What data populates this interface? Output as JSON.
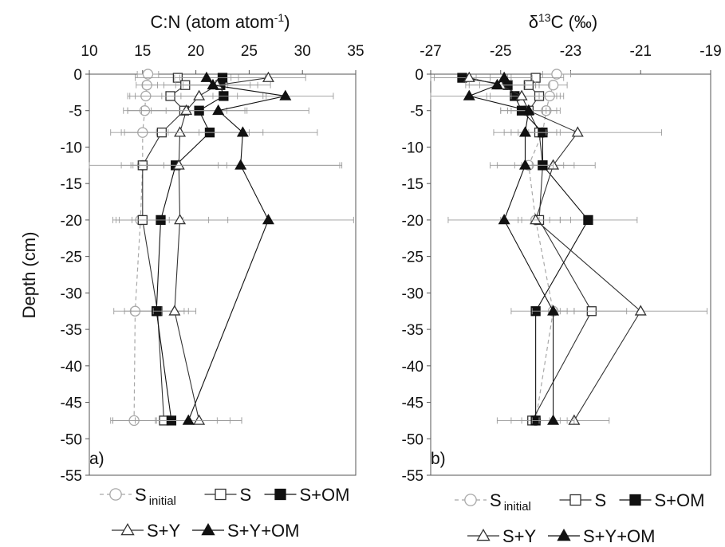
{
  "figure": {
    "ylabel": "Depth (cm)"
  },
  "chart_data": [
    {
      "type": "scatter",
      "panel_label": "a)",
      "title": "C:N (atom atom-1)",
      "title_main": "C:N (atom atom",
      "title_sup": "-1",
      "title_close": ")",
      "xaxis_position": "top",
      "xlim": [
        10,
        35
      ],
      "xticks": [
        "10",
        "15",
        "20",
        "25",
        "30",
        "35"
      ],
      "ylim": [
        -55,
        0
      ],
      "yticks": [
        "0",
        "-5",
        "-10",
        "-15",
        "-20",
        "-25",
        "-30",
        "-35",
        "-40",
        "-45",
        "-50",
        "-55"
      ],
      "ylabel": "Depth (cm)",
      "grid": false,
      "series": [
        {
          "name": "S initial",
          "name_main": "S",
          "name_sub": "initial",
          "marker": "circle",
          "marker_fill": "open",
          "line_style": "dashed",
          "color": "#a8a8a8",
          "y": [
            0,
            -1.5,
            -3,
            -5,
            -8,
            -12.5,
            -20,
            -32.5,
            -47.5
          ],
          "x": [
            15.5,
            15.4,
            15.3,
            15.2,
            15.0,
            15.0,
            14.8,
            14.3,
            14.2
          ],
          "xerr": [
            1.0,
            1.0,
            1.5,
            2.0,
            2.0,
            2.0,
            2.0,
            2.0,
            2.0
          ]
        },
        {
          "name": "S",
          "name_main": "S",
          "marker": "square",
          "marker_fill": "open",
          "line_style": "solid",
          "color": "#333333",
          "y": [
            -0.5,
            -1.5,
            -3,
            -5,
            -8,
            -12.5,
            -20,
            -32.5,
            -47.5
          ],
          "x": [
            18.3,
            19.0,
            17.6,
            18.9,
            16.8,
            15.0,
            15.0,
            16.4,
            17.0
          ],
          "xerr": [
            4.0,
            4.0,
            4.0,
            4.0,
            3.5,
            18.5,
            2.5,
            2.5,
            5.0
          ]
        },
        {
          "name": "S+OM",
          "name_main": "S+OM",
          "marker": "square",
          "marker_fill": "filled",
          "line_style": "solid",
          "color": "#111111",
          "y": [
            -0.5,
            -1.5,
            -3,
            -5,
            -8,
            -12.5,
            -20,
            -32.5,
            -47.5
          ],
          "x": [
            22.5,
            22.3,
            22.6,
            20.3,
            21.3,
            18.1,
            16.7,
            16.3,
            17.7
          ],
          "xerr": [
            4.0,
            3.5,
            4.0,
            4.5,
            5.0,
            4.0,
            4.5,
            3.0,
            5.5
          ]
        },
        {
          "name": "S+Y",
          "name_main": "S+Y",
          "marker": "triangle",
          "marker_fill": "open",
          "line_style": "solid",
          "color": "#333333",
          "y": [
            -0.5,
            -1.5,
            -3,
            -5,
            -8,
            -12.5,
            -20,
            -32.5,
            -47.5
          ],
          "x": [
            26.8,
            22.0,
            20.3,
            19.1,
            18.5,
            18.4,
            18.5,
            18.0,
            20.3
          ],
          "xerr": [
            3.5,
            5.0,
            6.0,
            5.5,
            6.5,
            4.5,
            4.5,
            2.0,
            4.0
          ]
        },
        {
          "name": "S+Y+OM",
          "name_main": "S+Y+OM",
          "marker": "triangle",
          "marker_fill": "filled",
          "line_style": "solid",
          "color": "#111111",
          "y": [
            -0.5,
            -1.5,
            -3,
            -5,
            -8,
            -12.5,
            -20,
            -47.5
          ],
          "x": [
            21.0,
            21.6,
            28.4,
            22.1,
            24.4,
            24.2,
            26.8,
            19.3
          ],
          "xerr": [
            3.0,
            3.5,
            4.5,
            8.5,
            7.0,
            9.5,
            8.0,
            5.0
          ]
        }
      ],
      "legend": {
        "placement": "bottom",
        "rows": [
          [
            "S initial",
            "S",
            "S+OM"
          ],
          [
            "S+Y",
            "S+Y+OM"
          ]
        ]
      }
    },
    {
      "type": "scatter",
      "panel_label": "b)",
      "title": "δ13C (‰)",
      "title_main": "δ",
      "title_sup": "13",
      "title_close": "C (‰)",
      "xaxis_position": "top",
      "xlim": [
        -27,
        -19
      ],
      "xticks": [
        "-27",
        "-25",
        "-23",
        "-21",
        "-19"
      ],
      "ylim": [
        -55,
        0
      ],
      "yticks": [
        "0",
        "-5",
        "-10",
        "-15",
        "-20",
        "-25",
        "-30",
        "-35",
        "-40",
        "-45",
        "-50",
        "-55"
      ],
      "grid": false,
      "series": [
        {
          "name": "S initial",
          "name_main": "S",
          "name_sub": "initial",
          "marker": "circle",
          "marker_fill": "open",
          "line_style": "dashed",
          "color": "#a8a8a8",
          "y": [
            0,
            -1.5,
            -3,
            -5,
            -8,
            -12.5,
            -20,
            -32.5,
            -47.5
          ],
          "x": [
            -23.4,
            -23.5,
            -23.6,
            -23.7,
            -23.8,
            -24.2,
            -24.0,
            -23.5,
            -24.0
          ],
          "xerr": [
            0.4,
            0.4,
            0.4,
            0.4,
            0.4,
            0.4,
            0.4,
            0.4,
            0.4
          ]
        },
        {
          "name": "S",
          "name_main": "S",
          "marker": "square",
          "marker_fill": "open",
          "line_style": "solid",
          "color": "#333333",
          "y": [
            -0.5,
            -1.5,
            -3,
            -5,
            -8,
            -12.5,
            -20,
            -32.5,
            -47.5
          ],
          "x": [
            -24.0,
            -24.2,
            -23.9,
            -24.2,
            -23.9,
            -23.8,
            -23.9,
            -22.4,
            -24.1
          ],
          "xerr": [
            0.8,
            0.6,
            0.6,
            0.5,
            0.6,
            0.6,
            0.6,
            1.0,
            1.0
          ]
        },
        {
          "name": "S+OM",
          "name_main": "S+OM",
          "marker": "square",
          "marker_fill": "filled",
          "line_style": "solid",
          "color": "#111111",
          "y": [
            -0.5,
            -1.5,
            -3,
            -5,
            -8,
            -12.5,
            -20,
            -32.5,
            -47.5
          ],
          "x": [
            -26.1,
            -24.8,
            -24.6,
            -24.4,
            -23.8,
            -23.8,
            -22.5,
            -24.0,
            -24.0
          ],
          "xerr": [
            0.8,
            0.8,
            0.7,
            0.6,
            0.9,
            1.5,
            1.4,
            0.7,
            0.7
          ]
        },
        {
          "name": "S+Y",
          "name_main": "S+Y",
          "marker": "triangle",
          "marker_fill": "open",
          "line_style": "solid",
          "color": "#333333",
          "y": [
            -0.5,
            -1.5,
            -3,
            -5,
            -8,
            -12.5,
            -20,
            -32.5,
            -47.5
          ],
          "x": [
            -25.9,
            -25.0,
            -24.4,
            -24.2,
            -22.8,
            -23.5,
            -24.0,
            -21.0,
            -22.9
          ],
          "xerr": [
            1.2,
            1.0,
            1.0,
            0.8,
            2.4,
            0.6,
            1.0,
            1.9,
            1.0
          ]
        },
        {
          "name": "S+Y+OM",
          "name_main": "S+Y+OM",
          "marker": "triangle",
          "marker_fill": "filled",
          "line_style": "solid",
          "color": "#111111",
          "y": [
            -0.5,
            -1.5,
            -3,
            -5,
            -8,
            -12.5,
            -20,
            -32.5,
            -47.5
          ],
          "x": [
            -24.9,
            -25.1,
            -25.9,
            -24.2,
            -24.3,
            -24.3,
            -24.9,
            -23.5,
            -23.5
          ],
          "xerr": [
            0.8,
            0.8,
            1.2,
            0.6,
            0.6,
            0.8,
            1.6,
            0.6,
            0.6
          ]
        }
      ],
      "legend": {
        "placement": "bottom",
        "rows": [
          [
            "S initial",
            "S",
            "S+OM"
          ],
          [
            "S+Y",
            "S+Y+OM"
          ]
        ]
      }
    }
  ]
}
